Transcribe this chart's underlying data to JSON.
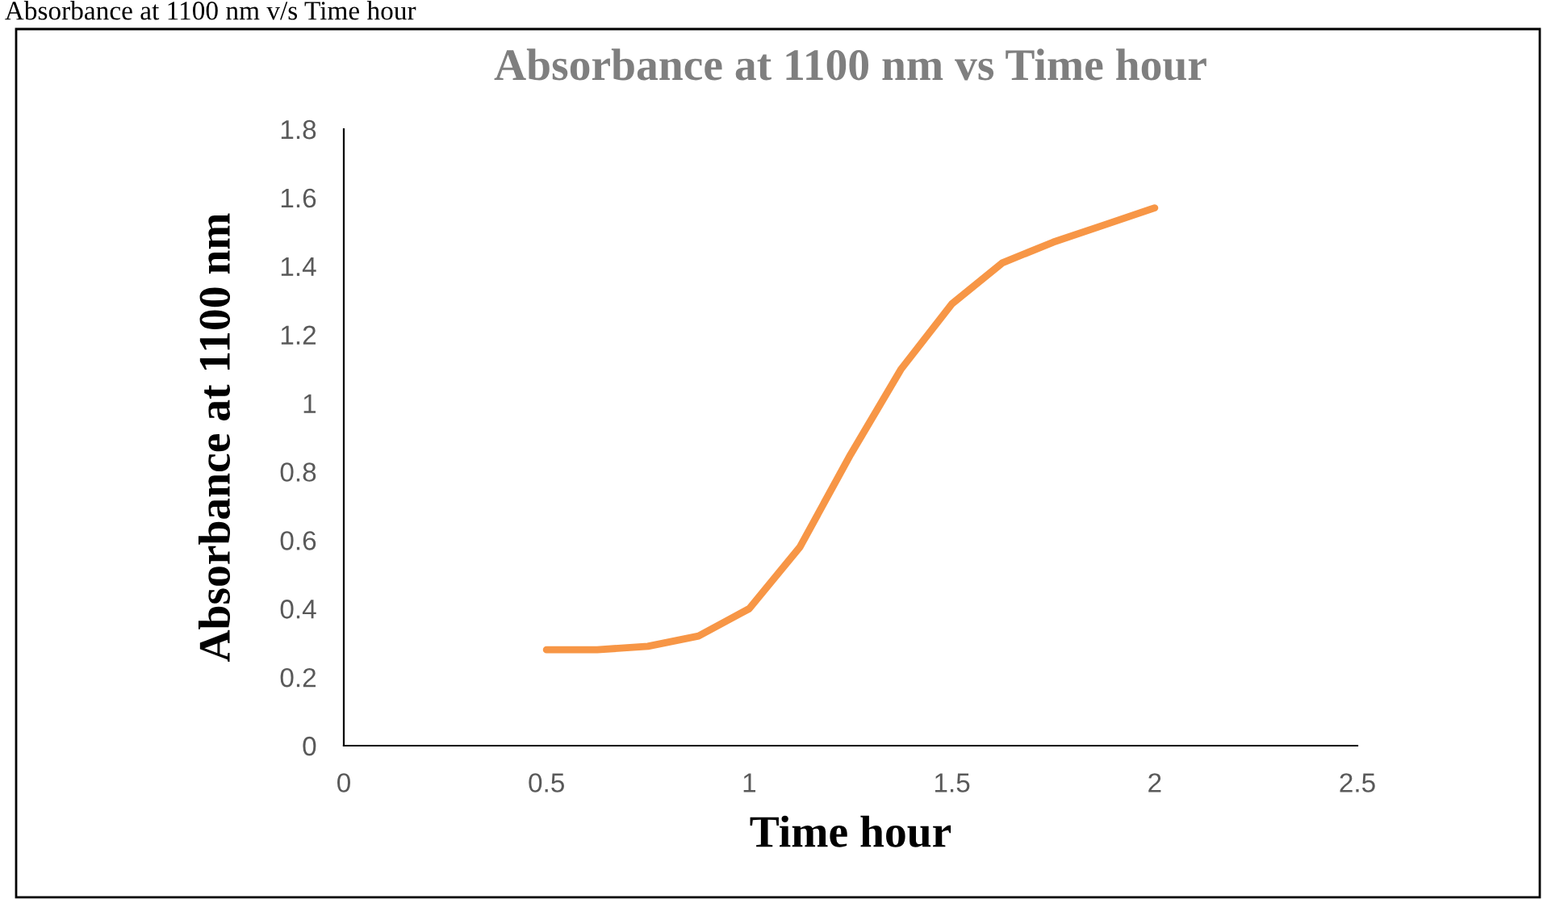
{
  "chart_data": {
    "type": "line",
    "title": "Absorbance at 1100 nm vs Time hour",
    "xlabel": "Time hour",
    "ylabel": "Absorbance at 1100 nm",
    "annotations": [
      "Absorbance at 1100 nm v/s Time hour"
    ],
    "x": [
      0.5,
      0.625,
      0.75,
      0.875,
      1.0,
      1.125,
      1.25,
      1.375,
      1.5,
      1.625,
      1.75,
      1.875,
      2.0
    ],
    "series": [
      {
        "color": "#f79646",
        "values": [
          0.28,
          0.28,
          0.29,
          0.32,
          0.4,
          0.58,
          0.85,
          1.1,
          1.29,
          1.41,
          1.47,
          1.52,
          1.57
        ]
      }
    ],
    "xlim": [
      0,
      2.5
    ],
    "xticks": [
      0,
      0.5,
      1,
      1.5,
      2,
      2.5
    ],
    "ylim": [
      0,
      1.8
    ],
    "yticks": [
      0,
      0.2,
      0.4,
      0.6,
      0.8,
      1,
      1.2,
      1.4,
      1.6,
      1.8
    ],
    "grid": false,
    "legend": false,
    "marker": "none",
    "line_style": "solid"
  }
}
